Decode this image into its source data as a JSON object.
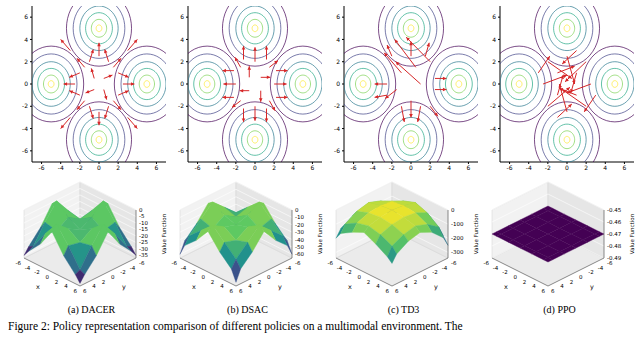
{
  "caption": "Figure 2: Policy representation comparison of different policies on a multimodal environment. The",
  "chart_data": [
    {
      "type": "contour",
      "xlim": [
        -7,
        7
      ],
      "ylim": [
        -7,
        7
      ],
      "xticks": [
        -6,
        -4,
        -2,
        0,
        2,
        4,
        6
      ],
      "yticks": [
        -6,
        -4,
        -2,
        0,
        2,
        4,
        6
      ],
      "peaks": [
        [
          0,
          5
        ],
        [
          5,
          0
        ],
        [
          0,
          -5
        ],
        [
          -5,
          0
        ]
      ],
      "contour_radii": [
        0.3,
        0.8,
        1.4,
        2.0,
        2.7,
        3.4
      ],
      "colors": [
        "#fde725",
        "#7ad151",
        "#22a884",
        "#2a788e",
        "#414487",
        "#440154"
      ],
      "color": "#d62728",
      "arrows": [
        [
          0,
          2.5,
          0,
          1.2
        ],
        [
          0,
          -2.5,
          0,
          -1.2
        ],
        [
          2.5,
          0,
          1.2,
          0
        ],
        [
          -2.5,
          0,
          -1.2,
          0
        ],
        [
          1,
          2,
          -0.4,
          1.1
        ],
        [
          -1,
          2,
          0.4,
          1.1
        ],
        [
          1,
          -2,
          -0.4,
          -1.1
        ],
        [
          -1,
          -2,
          0.4,
          -1.1
        ],
        [
          2,
          1,
          1.1,
          -0.4
        ],
        [
          2,
          -1,
          1.1,
          0.4
        ],
        [
          -2,
          1,
          -1.1,
          -0.4
        ],
        [
          -2,
          -1,
          -1.1,
          0.4
        ],
        [
          1.5,
          1.5,
          0.8,
          0.8
        ],
        [
          -1.5,
          1.5,
          -0.8,
          0.8
        ],
        [
          1.5,
          -1.5,
          0.8,
          -0.8
        ],
        [
          -1.5,
          -1.5,
          -0.8,
          -0.8
        ],
        [
          0.5,
          0.5,
          0.9,
          0.3
        ],
        [
          -0.5,
          0.5,
          -0.3,
          0.9
        ],
        [
          -0.5,
          -0.5,
          -0.9,
          -0.3
        ],
        [
          0.5,
          -0.5,
          0.3,
          -0.9
        ],
        [
          3,
          3,
          1,
          1
        ],
        [
          -3,
          3,
          -1,
          1
        ],
        [
          3,
          -3,
          1,
          -1
        ],
        [
          -3,
          -3,
          -1,
          -1
        ]
      ]
    },
    {
      "type": "contour",
      "xlim": [
        -7,
        7
      ],
      "ylim": [
        -7,
        7
      ],
      "xticks": [
        -6,
        -4,
        -2,
        0,
        2,
        4,
        6
      ],
      "yticks": [
        -6,
        -4,
        -2,
        0,
        2,
        4,
        6
      ],
      "peaks": [
        [
          0,
          5
        ],
        [
          5,
          0
        ],
        [
          0,
          -5
        ],
        [
          -5,
          0
        ]
      ],
      "contour_radii": [
        0.3,
        0.8,
        1.4,
        2.0,
        2.7,
        3.4
      ],
      "colors": [
        "#fde725",
        "#7ad151",
        "#22a884",
        "#2a788e",
        "#414487",
        "#440154"
      ],
      "color": "#d62728",
      "arrows": [
        [
          0,
          2,
          0,
          1.3
        ],
        [
          0,
          -2,
          0,
          -1.3
        ],
        [
          2,
          0,
          1.3,
          0
        ],
        [
          -2,
          0,
          -1.3,
          0
        ],
        [
          1.2,
          2.2,
          0,
          1.2
        ],
        [
          -1.2,
          2.2,
          0,
          1.2
        ],
        [
          1.2,
          -2.2,
          0,
          -1.2
        ],
        [
          -1.2,
          -2.2,
          0,
          -1.2
        ],
        [
          2.2,
          1.2,
          1.2,
          0
        ],
        [
          2.2,
          -1.2,
          1.2,
          0
        ],
        [
          -2.2,
          1.2,
          -1.2,
          0
        ],
        [
          -2.2,
          -1.2,
          -1.2,
          0
        ],
        [
          1.5,
          1.5,
          0.9,
          0.6
        ],
        [
          -1.5,
          1.5,
          -0.6,
          0.9
        ],
        [
          1.5,
          -1.5,
          0.6,
          -0.9
        ],
        [
          -1.5,
          -1.5,
          -0.9,
          -0.6
        ],
        [
          0.6,
          0.6,
          1,
          0
        ],
        [
          -0.6,
          0.6,
          0,
          1
        ],
        [
          -0.6,
          -0.6,
          -1,
          0
        ],
        [
          0.6,
          -0.6,
          0,
          -1
        ]
      ]
    },
    {
      "type": "contour",
      "xlim": [
        -7,
        7
      ],
      "ylim": [
        -7,
        7
      ],
      "xticks": [
        -6,
        -4,
        -2,
        0,
        2,
        4,
        6
      ],
      "yticks": [
        -6,
        -4,
        -2,
        0,
        2,
        4,
        6
      ],
      "peaks": [
        [
          0,
          5
        ],
        [
          5,
          0
        ],
        [
          0,
          -5
        ],
        [
          -5,
          0
        ]
      ],
      "contour_radii": [
        0.3,
        0.8,
        1.4,
        2.0,
        2.7,
        3.4
      ],
      "colors": [
        "#fde725",
        "#7ad151",
        "#22a884",
        "#2a788e",
        "#414487",
        "#440154"
      ],
      "color": "#d62728",
      "arrows": [
        [
          2,
          2,
          -2.5,
          2.2
        ],
        [
          0.5,
          1.5,
          -2.2,
          2.5
        ],
        [
          1,
          0,
          -2.6,
          2.0
        ],
        [
          -1,
          1,
          -1.8,
          1.8
        ],
        [
          2.5,
          0.5,
          1.2,
          0
        ],
        [
          2.5,
          -0.5,
          1.2,
          0
        ],
        [
          0,
          -1.5,
          0,
          -1.5
        ],
        [
          -1,
          -2,
          0.3,
          -1.4
        ],
        [
          1,
          -2,
          -0.3,
          -1.4
        ],
        [
          -2.5,
          0,
          -1.3,
          0
        ],
        [
          -2.5,
          -1,
          -1.3,
          -0.2
        ],
        [
          0,
          2.5,
          0,
          1.3
        ],
        [
          1.5,
          2.5,
          0.4,
          1.2
        ],
        [
          -1.5,
          -0.5,
          -1.2,
          -0.8
        ],
        [
          2,
          -2,
          0.8,
          -0.9
        ],
        [
          -2,
          2.5,
          -0.5,
          1.0
        ]
      ]
    },
    {
      "type": "contour",
      "xlim": [
        -7,
        7
      ],
      "ylim": [
        -7,
        7
      ],
      "xticks": [
        -6,
        -4,
        -2,
        0,
        2,
        4,
        6
      ],
      "yticks": [
        -6,
        -4,
        -2,
        0,
        2,
        4,
        6
      ],
      "peaks": [
        [
          0,
          5
        ],
        [
          5,
          0
        ],
        [
          0,
          -5
        ],
        [
          -5,
          0
        ]
      ],
      "contour_radii": [
        0.3,
        0.8,
        1.4,
        2.0,
        2.7,
        3.4
      ],
      "colors": [
        "#fde725",
        "#7ad151",
        "#22a884",
        "#2a788e",
        "#414487",
        "#440154"
      ],
      "color": "#d62728",
      "arrows": [
        [
          -2,
          2,
          2.5,
          -1.5
        ],
        [
          2,
          2,
          -2.2,
          -1.8
        ],
        [
          -2,
          -2,
          2.3,
          1.7
        ],
        [
          2,
          -2,
          -2.5,
          1.5
        ],
        [
          0,
          2.5,
          0.8,
          -2.5
        ],
        [
          0,
          -2.5,
          -0.8,
          2.5
        ],
        [
          2.5,
          0,
          -2.5,
          -0.8
        ],
        [
          -2.5,
          0,
          2.5,
          0.8
        ],
        [
          -1,
          1,
          1.8,
          0.6
        ],
        [
          1,
          1,
          -0.6,
          -1.8
        ],
        [
          1,
          -1,
          -1.8,
          0.6
        ],
        [
          -1,
          -1,
          0.6,
          1.8
        ],
        [
          -3,
          1,
          1.2,
          1.5
        ],
        [
          3,
          -1,
          -1.2,
          -1.5
        ],
        [
          1,
          3,
          -1.5,
          -1.2
        ],
        [
          -1,
          -3,
          1.5,
          1.2
        ]
      ]
    },
    {
      "type": "surface",
      "title": "(a) DACER",
      "x_label": "x",
      "y_label": "y",
      "z_label": "Value Function",
      "xlim": [
        -6,
        6
      ],
      "ylim": [
        -6,
        6
      ],
      "zlim": [
        -37,
        0
      ],
      "xticks": [
        -6,
        -4,
        -2,
        0,
        2,
        4,
        6
      ],
      "yticks": [
        -6,
        -4,
        -2,
        0,
        2,
        4,
        6
      ],
      "zticks": [
        0,
        -5,
        -10,
        -15,
        -20,
        -25,
        -30,
        -35
      ],
      "x": [
        -6,
        -5,
        -2.5,
        0,
        2.5,
        5,
        6
      ],
      "y": [
        -6,
        -5,
        -2.5,
        0,
        2.5,
        5,
        6
      ],
      "z": [
        [
          -35,
          -30,
          -20,
          -6,
          -20,
          -30,
          -35
        ],
        [
          -30,
          -28,
          -14,
          -2,
          -14,
          -28,
          -30
        ],
        [
          -20,
          -14,
          -16,
          -10,
          -16,
          -14,
          -20
        ],
        [
          -6,
          -2,
          -10,
          -15,
          -10,
          -2,
          -6
        ],
        [
          -20,
          -14,
          -16,
          -10,
          -16,
          -14,
          -20
        ],
        [
          -30,
          -28,
          -14,
          -2,
          -14,
          -28,
          -30
        ],
        [
          -35,
          -30,
          -20,
          -6,
          -20,
          -30,
          -35
        ]
      ]
    },
    {
      "type": "surface",
      "title": "(b) DSAC",
      "x_label": "x",
      "y_label": "y",
      "z_label": "Value Function",
      "xlim": [
        -6,
        6
      ],
      "ylim": [
        -6,
        6
      ],
      "zlim": [
        -65,
        0
      ],
      "xticks": [
        -6,
        -4,
        -2,
        0,
        2,
        4,
        6
      ],
      "yticks": [
        -6,
        -4,
        -2,
        0,
        2,
        4,
        6
      ],
      "zticks": [
        0,
        -10,
        -20,
        -30,
        -40,
        -50,
        -60
      ],
      "x": [
        -6,
        -5,
        -2.5,
        0,
        2.5,
        5,
        6
      ],
      "y": [
        -6,
        -5,
        -2.5,
        0,
        2.5,
        5,
        6
      ],
      "z": [
        [
          -60,
          -45,
          -30,
          -10,
          -30,
          -45,
          -60
        ],
        [
          -45,
          -35,
          -20,
          -5,
          -20,
          -35,
          -45
        ],
        [
          -30,
          -20,
          -25,
          -15,
          -25,
          -20,
          -30
        ],
        [
          -10,
          -5,
          -15,
          -20,
          -15,
          -5,
          -10
        ],
        [
          -30,
          -20,
          -25,
          -15,
          -25,
          -20,
          -30
        ],
        [
          -45,
          -35,
          -20,
          -5,
          -20,
          -35,
          -45
        ],
        [
          -60,
          -45,
          -30,
          -10,
          -30,
          -45,
          -60
        ]
      ]
    },
    {
      "type": "surface",
      "title": "(c) TD3",
      "x_label": "x",
      "y_label": "y",
      "z_label": "Value Function",
      "xlim": [
        -6,
        6
      ],
      "ylim": [
        -6,
        6
      ],
      "zlim": [
        -340,
        0
      ],
      "xticks": [
        -6,
        -4,
        -2,
        0,
        2,
        4,
        6
      ],
      "yticks": [
        -6,
        -4,
        -2,
        0,
        2,
        4,
        6
      ],
      "zticks": [
        0,
        -100,
        -200,
        -300
      ],
      "x": [
        -6,
        -5,
        -2.5,
        0,
        2.5,
        5,
        6
      ],
      "y": [
        -6,
        -5,
        -2.5,
        0,
        2.5,
        5,
        6
      ],
      "z": [
        [
          -300,
          -200,
          -120,
          -80,
          -120,
          -200,
          -250
        ],
        [
          -200,
          -120,
          -60,
          -30,
          -60,
          -120,
          -180
        ],
        [
          -120,
          -60,
          -20,
          -10,
          -20,
          -60,
          -100
        ],
        [
          -80,
          -30,
          -10,
          0,
          -10,
          -30,
          -60
        ],
        [
          -100,
          -50,
          -20,
          -10,
          -20,
          -50,
          -80
        ],
        [
          -150,
          -100,
          -50,
          -30,
          -50,
          -90,
          -130
        ],
        [
          -200,
          -150,
          -100,
          -60,
          -100,
          -150,
          -180
        ]
      ]
    },
    {
      "type": "surface",
      "title": "(d) PPO",
      "x_label": "x",
      "y_label": "y",
      "z_label": "Value Function",
      "xlim": [
        -6,
        6
      ],
      "ylim": [
        -6,
        6
      ],
      "zlim": [
        -0.49,
        -0.45
      ],
      "xticks": [
        -6,
        -4,
        -2,
        0,
        2,
        4,
        6
      ],
      "yticks": [
        -6,
        -4,
        -2,
        0,
        2,
        4,
        6
      ],
      "zticks": [
        -0.45,
        -0.46,
        -0.47,
        -0.48,
        -0.49
      ],
      "x": [
        -6,
        -5,
        -2.5,
        0,
        2.5,
        5,
        6
      ],
      "y": [
        -6,
        -5,
        -2.5,
        0,
        2.5,
        5,
        6
      ],
      "z": [
        [
          -0.47,
          -0.47,
          -0.47,
          -0.47,
          -0.47,
          -0.47,
          -0.47
        ],
        [
          -0.47,
          -0.47,
          -0.47,
          -0.47,
          -0.47,
          -0.47,
          -0.47
        ],
        [
          -0.47,
          -0.47,
          -0.47,
          -0.47,
          -0.47,
          -0.47,
          -0.47
        ],
        [
          -0.47,
          -0.47,
          -0.47,
          -0.47,
          -0.47,
          -0.47,
          -0.47
        ],
        [
          -0.47,
          -0.47,
          -0.47,
          -0.47,
          -0.47,
          -0.47,
          -0.47
        ],
        [
          -0.47,
          -0.47,
          -0.47,
          -0.47,
          -0.47,
          -0.47,
          -0.47
        ],
        [
          -0.47,
          -0.47,
          -0.47,
          -0.47,
          -0.47,
          -0.47,
          -0.47
        ]
      ]
    }
  ]
}
